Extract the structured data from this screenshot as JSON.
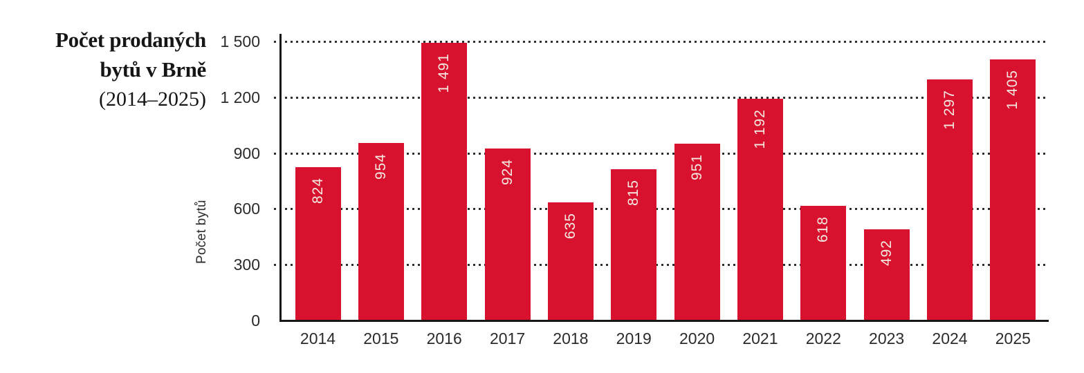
{
  "title": {
    "line1": "Počet prodaných",
    "line2": "bytů v Brně",
    "line3": "(2014–2025)"
  },
  "chart_data": {
    "type": "bar",
    "title": "Počet prodaných bytů v Brně (2014–2025)",
    "ylabel": "Počet bytů",
    "xlabel": "",
    "categories": [
      "2014",
      "2015",
      "2016",
      "2017",
      "2018",
      "2019",
      "2020",
      "2021",
      "2022",
      "2023",
      "2024",
      "2025"
    ],
    "values": [
      824,
      954,
      1491,
      924,
      635,
      815,
      951,
      1192,
      618,
      492,
      1297,
      1405
    ],
    "bar_value_labels": [
      "824",
      "954",
      "1 491",
      "924",
      "635",
      "815",
      "951",
      "1 192",
      "618",
      "492",
      "1 297",
      "1 405"
    ],
    "ylim": [
      0,
      1500
    ],
    "yticks": [
      0,
      300,
      600,
      900,
      1200,
      1500
    ],
    "ytick_labels": [
      "0",
      "300",
      "600",
      "900",
      "1 200",
      "1 500"
    ],
    "grid": "horizontal dotted lines at each y tick",
    "legend": "none",
    "colors": {
      "bar": "#d8112f",
      "bar_label_text": "#f4eae1",
      "axis": "#161616",
      "tick_text": "#2b2b2b",
      "title_text": "#151515",
      "background": "#ffffff"
    }
  }
}
